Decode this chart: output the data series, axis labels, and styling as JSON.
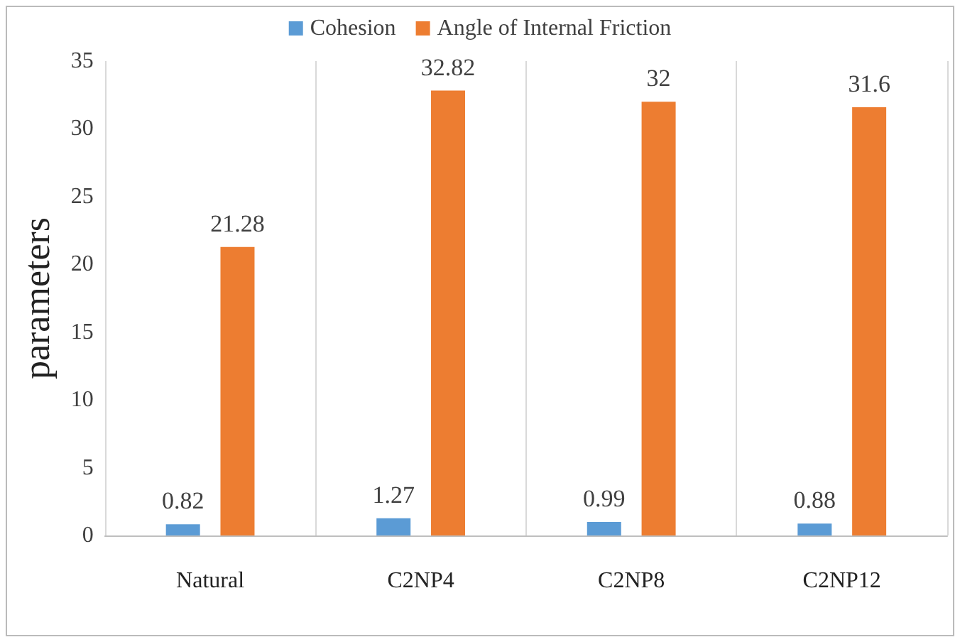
{
  "chart_data": {
    "type": "bar",
    "ylabel": "parameters",
    "categories": [
      "Natural",
      "C2NP4",
      "C2NP8",
      "C2NP12"
    ],
    "series": [
      {
        "name": "Cohesion",
        "color": "#5b9bd5",
        "values": [
          0.82,
          1.27,
          0.99,
          0.88
        ]
      },
      {
        "name": "Angle of Internal Friction",
        "color": "#ed7d31",
        "values": [
          21.28,
          32.82,
          32,
          31.6
        ]
      }
    ],
    "ylim": [
      0,
      35
    ],
    "yticks": [
      0,
      5,
      10,
      15,
      20,
      25,
      30,
      35
    ],
    "grid": "x",
    "legend": "top",
    "data_labels": true
  }
}
